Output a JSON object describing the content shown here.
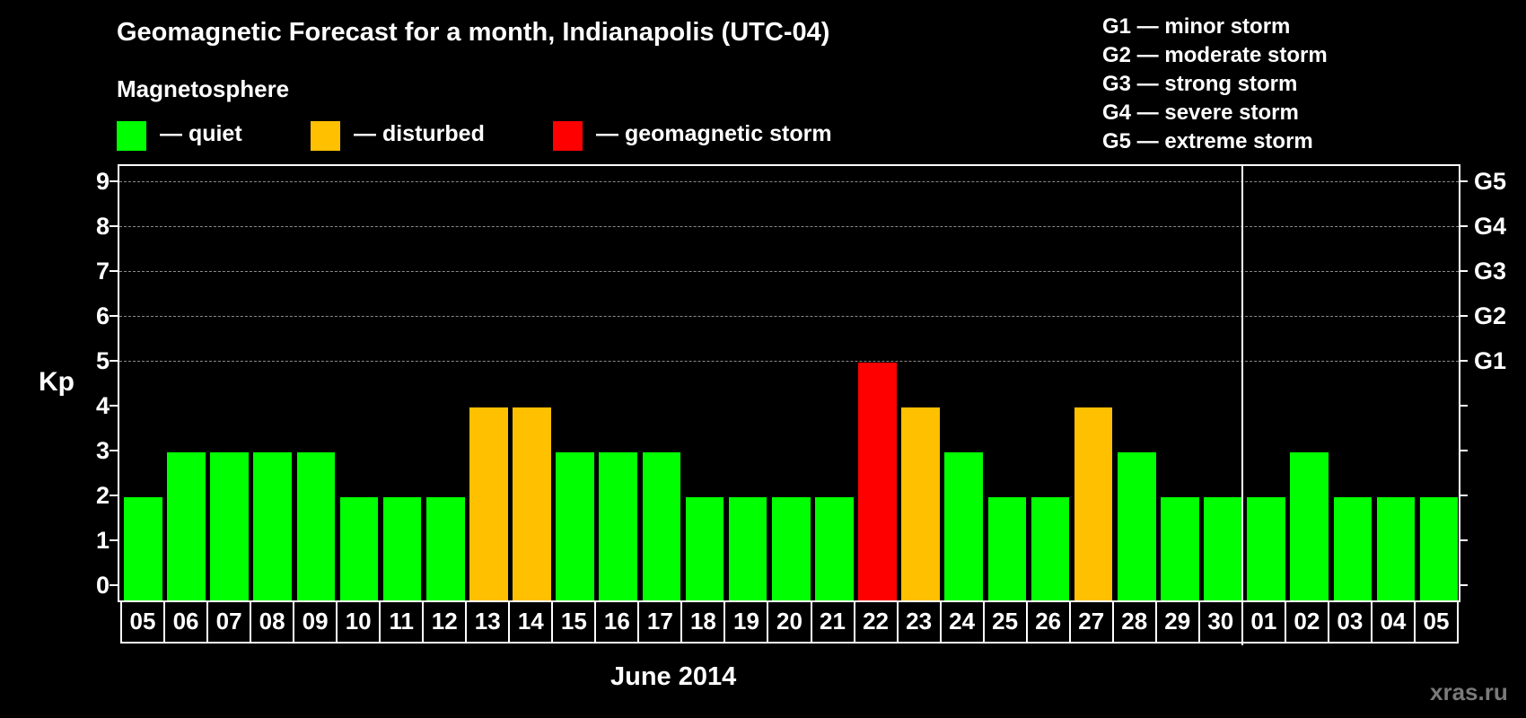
{
  "header": {
    "title": "Geomagnetic Forecast for a month, Indianapolis (UTC-04)",
    "subtitle": "Magnetosphere"
  },
  "legend": [
    {
      "label": "— quiet",
      "color": "#00ff00"
    },
    {
      "label": "— disturbed",
      "color": "#ffc000"
    },
    {
      "label": "— geomagnetic storm",
      "color": "#ff0000"
    }
  ],
  "g_scale": [
    "G1 — minor storm",
    "G2 — moderate storm",
    "G3 — strong storm",
    "G4 — severe storm",
    "G5 — extreme storm"
  ],
  "watermark": "xras.ru",
  "chart_data": {
    "type": "bar",
    "title": "Geomagnetic Forecast for a month, Indianapolis (UTC-04)",
    "xlabel": "June 2014",
    "ylabel": "Kp",
    "ylim": [
      0,
      9
    ],
    "yticks": [
      0,
      1,
      2,
      3,
      4,
      5,
      6,
      7,
      8,
      9
    ],
    "right_axis_labels": [
      {
        "y": 5,
        "label": "G1"
      },
      {
        "y": 6,
        "label": "G2"
      },
      {
        "y": 7,
        "label": "G3"
      },
      {
        "y": 8,
        "label": "G4"
      },
      {
        "y": 9,
        "label": "G5"
      }
    ],
    "grid": {
      "dashed_at": [
        5,
        6,
        7,
        8,
        9
      ]
    },
    "month_separator_after": "30",
    "categories": [
      "05",
      "06",
      "07",
      "08",
      "09",
      "10",
      "11",
      "12",
      "13",
      "14",
      "15",
      "16",
      "17",
      "18",
      "19",
      "20",
      "21",
      "22",
      "23",
      "24",
      "25",
      "26",
      "27",
      "28",
      "29",
      "30",
      "01",
      "02",
      "03",
      "04",
      "05"
    ],
    "values": [
      2,
      3,
      3,
      3,
      3,
      2,
      2,
      2,
      4,
      4,
      3,
      3,
      3,
      2,
      2,
      2,
      2,
      5,
      4,
      3,
      2,
      2,
      4,
      3,
      2,
      2,
      2,
      3,
      2,
      2,
      2
    ],
    "status": [
      "quiet",
      "quiet",
      "quiet",
      "quiet",
      "quiet",
      "quiet",
      "quiet",
      "quiet",
      "disturbed",
      "disturbed",
      "quiet",
      "quiet",
      "quiet",
      "quiet",
      "quiet",
      "quiet",
      "quiet",
      "storm",
      "disturbed",
      "quiet",
      "quiet",
      "quiet",
      "disturbed",
      "quiet",
      "quiet",
      "quiet",
      "quiet",
      "quiet",
      "quiet",
      "quiet",
      "quiet"
    ],
    "colors": {
      "quiet": "#00ff00",
      "disturbed": "#ffc000",
      "storm": "#ff0000"
    }
  }
}
